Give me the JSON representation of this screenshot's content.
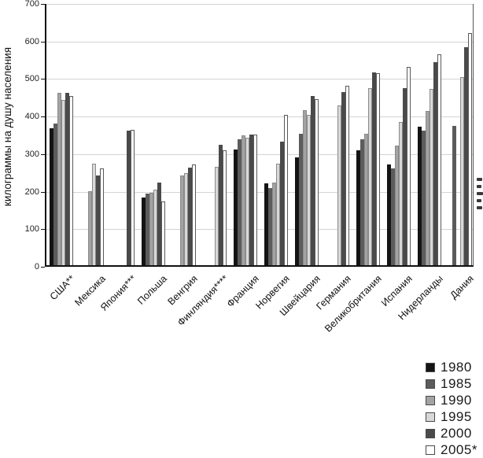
{
  "chart_data": {
    "type": "bar",
    "title": "",
    "xlabel": "",
    "ylabel": "килограммы на душу населения",
    "ylim": [
      0,
      700
    ],
    "ytick_step": 100,
    "yticks": [
      0,
      100,
      200,
      300,
      400,
      500,
      600,
      700
    ],
    "grid": true,
    "legend_position": "bottom-right",
    "categories": [
      "США**",
      "Мексика",
      "Япония***",
      "Польша",
      "Венгрия",
      "Финляндия****",
      "Франция",
      "Норвегия",
      "Швейцария",
      "Германия",
      "Великобритания",
      "Испания",
      "Нидерланды",
      "Дания"
    ],
    "series": [
      {
        "name": "1980",
        "color": "#141414",
        "border_color": "#141414",
        "values": [
          365,
          null,
          null,
          180,
          null,
          null,
          308,
          218,
          287,
          null,
          307,
          268,
          368,
          null
        ]
      },
      {
        "name": "1985",
        "color": "#5c5c5c",
        "border_color": "#5c5c5c",
        "values": [
          378,
          null,
          null,
          190,
          null,
          null,
          336,
          205,
          349,
          null,
          336,
          258,
          359,
          370
        ]
      },
      {
        "name": "1990",
        "color": "#a3a3a3",
        "border_color": "#8a8a8a",
        "values": [
          460,
          198,
          null,
          193,
          240,
          null,
          345,
          220,
          412,
          null,
          349,
          318,
          410,
          null
        ]
      },
      {
        "name": "1995",
        "color": "#d8d8d8",
        "border_color": "#8a8a8a",
        "values": [
          440,
          270,
          null,
          201,
          246,
          262,
          340,
          270,
          400,
          426,
          471,
          381,
          470,
          500
        ]
      },
      {
        "name": "2000",
        "color": "#4a4a4a",
        "border_color": "#4a4a4a",
        "values": [
          460,
          240,
          358,
          220,
          259,
          320,
          347,
          330,
          450,
          461,
          513,
          471,
          540,
          580
        ]
      },
      {
        "name": "2005*",
        "color": "#ffffff",
        "border_color": "#595959",
        "values": [
          450,
          258,
          360,
          170,
          268,
          307,
          348,
          400,
          442,
          478,
          512,
          529,
          561,
          619
        ]
      }
    ]
  }
}
